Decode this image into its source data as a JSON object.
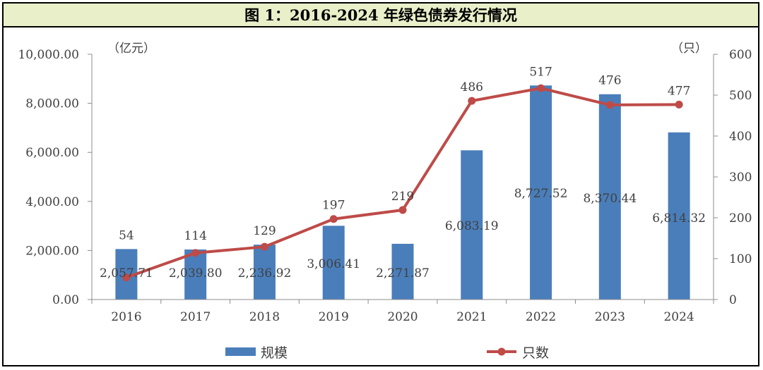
{
  "chart_data": {
    "type": "bar+line",
    "title": "图 1：2016-2024 年绿色债券发行情况",
    "categories": [
      "2016",
      "2017",
      "2018",
      "2019",
      "2020",
      "2021",
      "2022",
      "2023",
      "2024"
    ],
    "series": [
      {
        "name": "规模",
        "type": "bar",
        "axis": "left",
        "values": [
          2057.71,
          2039.8,
          2236.92,
          3006.41,
          2271.87,
          6083.19,
          8727.52,
          8370.44,
          6814.32
        ],
        "labels": [
          "2,057.71",
          "2,039.80",
          "2,236.92",
          "3,006.41",
          "2,271.87",
          "6,083.19",
          "8,727.52",
          "8,370.44",
          "6,814.32"
        ],
        "color": "#4a7ebb"
      },
      {
        "name": "只数",
        "type": "line",
        "axis": "right",
        "values": [
          54,
          114,
          129,
          197,
          219,
          486,
          517,
          476,
          477
        ],
        "labels": [
          "54",
          "114",
          "129",
          "197",
          "219",
          "486",
          "517",
          "476",
          "477"
        ],
        "color": "#be4b48"
      }
    ],
    "y_left": {
      "unit": "（亿元）",
      "range": [
        0,
        10000
      ],
      "ticks": [
        "0.00",
        "2,000.00",
        "4,000.00",
        "6,000.00",
        "8,000.00",
        "10,000.00"
      ]
    },
    "y_right": {
      "unit": "（只）",
      "range": [
        0,
        600
      ],
      "ticks": [
        "0",
        "100",
        "200",
        "300",
        "400",
        "500",
        "600"
      ]
    },
    "grid": false,
    "legend": "bottom"
  }
}
